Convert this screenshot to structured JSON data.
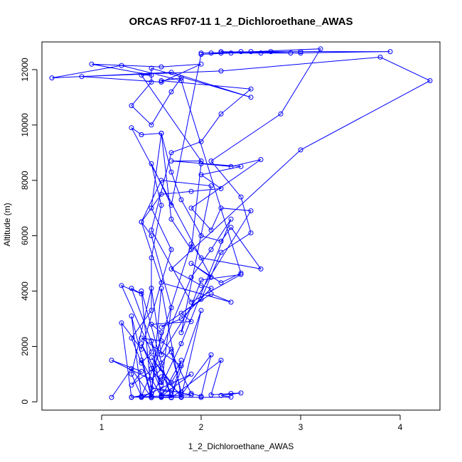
{
  "chart_data": {
    "type": "line",
    "title": "ORCAS RF07-11 1_2_Dichloroethane_AWAS",
    "xlabel": "1_2_Dichloroethane_AWAS",
    "ylabel": "Altitude (m)",
    "xlim": [
      0.4,
      4.4
    ],
    "ylim": [
      -300,
      13000
    ],
    "xticks": [
      1,
      2,
      3,
      4
    ],
    "yticks": [
      0,
      2000,
      4000,
      6000,
      8000,
      10000,
      12000
    ],
    "grid": false,
    "color": "#0000ff",
    "markers": "open-circle",
    "series": [
      {
        "points": [
          [
            1.1,
            160
          ],
          [
            1.3,
            1200
          ],
          [
            1.5,
            150
          ],
          [
            1.4,
            1500
          ],
          [
            1.6,
            180
          ],
          [
            1.8,
            1500
          ],
          [
            1.7,
            160
          ],
          [
            1.5,
            2200
          ],
          [
            1.6,
            200
          ],
          [
            1.9,
            1000
          ],
          [
            1.4,
            160
          ],
          [
            1.3,
            3100
          ],
          [
            1.5,
            200
          ],
          [
            1.6,
            4100
          ],
          [
            1.8,
            180
          ],
          [
            2.0,
            3300
          ],
          [
            1.7,
            150
          ],
          [
            1.4,
            4000
          ],
          [
            1.5,
            300
          ],
          [
            1.3,
            160
          ],
          [
            1.2,
            2850
          ],
          [
            1.4,
            1900
          ],
          [
            1.7,
            5500
          ],
          [
            1.5,
            7000
          ],
          [
            1.6,
            9700
          ],
          [
            1.7,
            6600
          ],
          [
            1.9,
            5500
          ],
          [
            2.0,
            8600
          ],
          [
            2.3,
            8500
          ],
          [
            2.6,
            8750
          ],
          [
            1.9,
            7000
          ],
          [
            2.1,
            6200
          ],
          [
            2.2,
            7000
          ],
          [
            2.5,
            6900
          ],
          [
            1.6,
            1700
          ],
          [
            1.5,
            4100
          ],
          [
            1.3,
            1000
          ],
          [
            1.4,
            200
          ],
          [
            1.9,
            4500
          ],
          [
            2.1,
            5500
          ],
          [
            2.3,
            6600
          ],
          [
            1.8,
            2100
          ],
          [
            1.6,
            600
          ],
          [
            1.7,
            3400
          ],
          [
            1.5,
            6000
          ],
          [
            1.4,
            6500
          ],
          [
            1.6,
            8000
          ],
          [
            2.1,
            7800
          ],
          [
            1.8,
            2500
          ],
          [
            2.0,
            4400
          ],
          [
            2.4,
            4600
          ],
          [
            1.9,
            3600
          ],
          [
            1.5,
            6200
          ],
          [
            1.7,
            9000
          ],
          [
            2.0,
            9400
          ],
          [
            2.2,
            10400
          ],
          [
            2.5,
            11300
          ],
          [
            1.6,
            11600
          ],
          [
            1.8,
            11700
          ],
          [
            1.7,
            11200
          ],
          [
            1.5,
            10000
          ],
          [
            1.3,
            10700
          ],
          [
            1.5,
            11550
          ],
          [
            1.5,
            12050
          ],
          [
            2.5,
            11000
          ],
          [
            1.7,
            11900
          ],
          [
            0.5,
            11700
          ],
          [
            1.2,
            12150
          ],
          [
            1.8,
            11600
          ],
          [
            2.4,
            4650
          ],
          [
            2.2,
            4300
          ],
          [
            1.9,
            5000
          ],
          [
            2.1,
            4500
          ],
          [
            1.3,
            9900
          ],
          [
            1.4,
            9650
          ],
          [
            1.6,
            9700
          ],
          [
            1.7,
            8300
          ],
          [
            1.8,
            7300
          ],
          [
            2.0,
            6000
          ],
          [
            2.2,
            5800
          ],
          [
            2.3,
            6300
          ],
          [
            2.6,
            4800
          ],
          [
            2.0,
            5200
          ],
          [
            1.9,
            5700
          ],
          [
            1.5,
            1200
          ],
          [
            1.6,
            700
          ],
          [
            1.4,
            2100
          ],
          [
            1.6,
            400
          ],
          [
            1.8,
            350
          ],
          [
            1.7,
            1800
          ],
          [
            1.9,
            300
          ],
          [
            2.0,
            200
          ],
          [
            2.1,
            1700
          ],
          [
            1.8,
            250
          ],
          [
            1.6,
            900
          ],
          [
            1.5,
            160
          ],
          [
            1.7,
            150
          ],
          [
            2.2,
            1500
          ],
          [
            2.1,
            250
          ],
          [
            2.3,
            300
          ],
          [
            2.4,
            320
          ],
          [
            2.2,
            230
          ],
          [
            2.3,
            170
          ],
          [
            2.0,
            160
          ],
          [
            1.8,
            170
          ],
          [
            1.6,
            160
          ],
          [
            1.4,
            170
          ],
          [
            1.3,
            170
          ],
          [
            1.9,
            250
          ],
          [
            1.7,
            400
          ],
          [
            1.5,
            500
          ],
          [
            1.6,
            2500
          ],
          [
            1.5,
            2800
          ],
          [
            1.9,
            2900
          ],
          [
            1.8,
            3200
          ],
          [
            2.1,
            3900
          ],
          [
            2.3,
            3600
          ],
          [
            1.6,
            4300
          ],
          [
            1.4,
            6500
          ],
          [
            1.6,
            7500
          ],
          [
            1.9,
            7600
          ],
          [
            2.2,
            7700
          ],
          [
            2.0,
            8200
          ],
          [
            2.4,
            8500
          ],
          [
            1.7,
            8700
          ],
          [
            2.0,
            8700
          ],
          [
            1.4,
            11800
          ],
          [
            1.5,
            11800
          ],
          [
            0.9,
            12200
          ],
          [
            1.6,
            12100
          ],
          [
            2.0,
            12200
          ],
          [
            1.6,
            11550
          ],
          [
            0.8,
            11750
          ],
          [
            2.2,
            11950
          ],
          [
            3.8,
            12450
          ],
          [
            4.3,
            11600
          ],
          [
            3.0,
            9100
          ],
          [
            1.7,
            4800
          ],
          [
            2.0,
            4200
          ],
          [
            2.1,
            4100
          ],
          [
            1.8,
            3000
          ],
          [
            1.6,
            2700
          ],
          [
            2.0,
            3700
          ],
          [
            2.2,
            5400
          ],
          [
            2.5,
            6100
          ],
          [
            2.4,
            7400
          ],
          [
            2.1,
            8700
          ],
          [
            2.8,
            10400
          ],
          [
            3.2,
            12750
          ],
          [
            2.2,
            12600
          ],
          [
            2.5,
            12650
          ],
          [
            3.0,
            12650
          ],
          [
            2.0,
            12600
          ],
          [
            2.7,
            12650
          ],
          [
            3.9,
            12650
          ],
          [
            2.9,
            12600
          ],
          [
            2.2,
            12650
          ],
          [
            2.6,
            12600
          ],
          [
            2.4,
            12650
          ],
          [
            2.1,
            12600
          ],
          [
            3.0,
            12600
          ],
          [
            2.3,
            12600
          ],
          [
            2.0,
            12550
          ],
          [
            1.7,
            7100
          ],
          [
            1.5,
            8600
          ],
          [
            1.6,
            7100
          ],
          [
            1.5,
            5200
          ],
          [
            1.5,
            3300
          ],
          [
            1.3,
            2300
          ],
          [
            1.4,
            1400
          ],
          [
            1.5,
            1800
          ],
          [
            1.2,
            4200
          ],
          [
            1.4,
            3900
          ],
          [
            1.3,
            4100
          ],
          [
            1.6,
            1200
          ],
          [
            1.5,
            800
          ],
          [
            1.1,
            1500
          ],
          [
            1.4,
            1100
          ],
          [
            1.3,
            600
          ],
          [
            1.6,
            1400
          ],
          [
            1.7,
            1900
          ],
          [
            1.6,
            2200
          ],
          [
            1.4,
            2300
          ],
          [
            1.8,
            1300
          ],
          [
            1.7,
            700
          ],
          [
            1.5,
            1600
          ],
          [
            1.8,
            160
          ],
          [
            1.6,
            230
          ],
          [
            1.7,
            260
          ]
        ]
      }
    ]
  }
}
